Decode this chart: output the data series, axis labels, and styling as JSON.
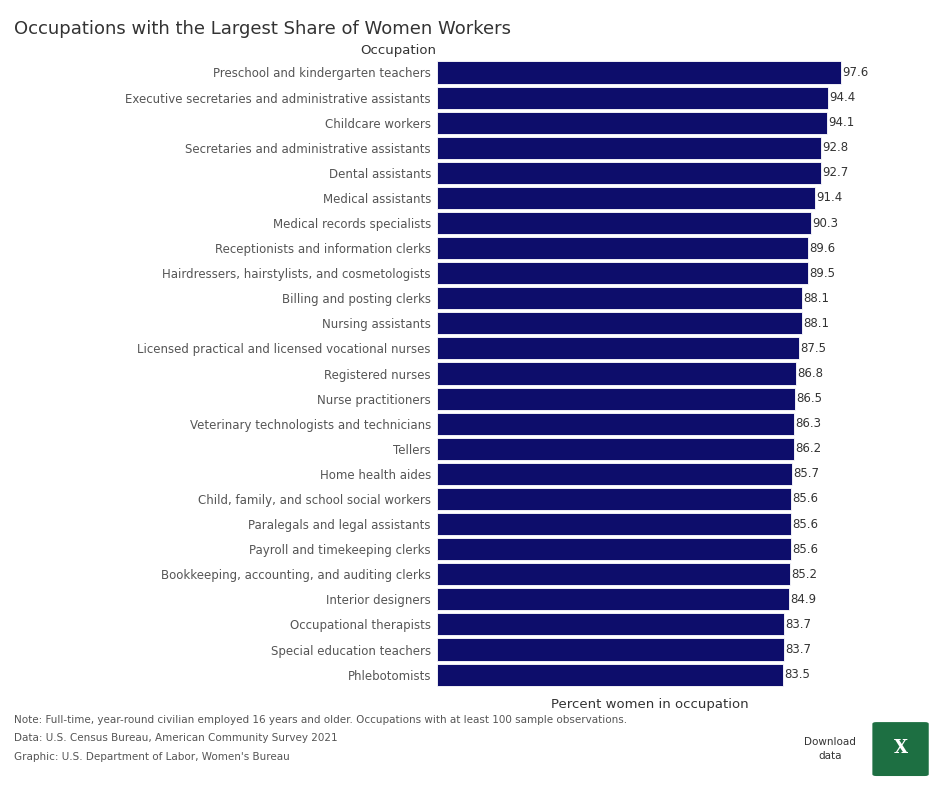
{
  "title": "Occupations with the Largest Share of Women Workers",
  "xlabel": "Percent women in occupation",
  "ylabel": "Occupation",
  "bar_color": "#0d0d6b",
  "label_color": "#555555",
  "value_color": "#333333",
  "background_color": "#ffffff",
  "categories": [
    "Preschool and kindergarten teachers",
    "Executive secretaries and administrative assistants",
    "Childcare workers",
    "Secretaries and administrative assistants",
    "Dental assistants",
    "Medical assistants",
    "Medical records specialists",
    "Receptionists and information clerks",
    "Hairdressers, hairstylists, and cosmetologists",
    "Billing and posting clerks",
    "Nursing assistants",
    "Licensed practical and licensed vocational nurses",
    "Registered nurses",
    "Nurse practitioners",
    "Veterinary technologists and technicians",
    "Tellers",
    "Home health aides",
    "Child, family, and school social workers",
    "Paralegals and legal assistants",
    "Payroll and timekeeping clerks",
    "Bookkeeping, accounting, and auditing clerks",
    "Interior designers",
    "Occupational therapists",
    "Special education teachers",
    "Phlebotomists"
  ],
  "values": [
    97.6,
    94.4,
    94.1,
    92.8,
    92.7,
    91.4,
    90.3,
    89.6,
    89.5,
    88.1,
    88.1,
    87.5,
    86.8,
    86.5,
    86.3,
    86.2,
    85.7,
    85.6,
    85.6,
    85.6,
    85.2,
    84.9,
    83.7,
    83.7,
    83.5
  ],
  "note_line1": "Note: Full-time, year-round civilian employed 16 years and older. Occupations with at least 100 sample observations.",
  "note_line2": "Data: U.S. Census Bureau, American Community Survey 2021",
  "note_line3": "Graphic: U.S. Department of Labor, Women's Bureau",
  "download_text": "Download\ndata",
  "title_fontsize": 13,
  "axis_label_fontsize": 9.5,
  "tick_fontsize": 8.5,
  "value_fontsize": 8.5,
  "note_fontsize": 7.5,
  "xlim_min": 0,
  "xlim_max": 103
}
